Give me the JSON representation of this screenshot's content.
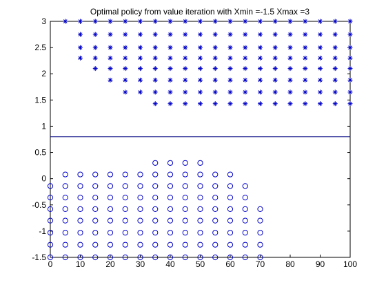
{
  "chart_data": {
    "type": "scatter",
    "title": "Optimal policy from value iteration with Xmin =-1.5 Xmax =3",
    "xlabel": "",
    "ylabel": "",
    "xlim": [
      0,
      100
    ],
    "ylim": [
      -1.5,
      3
    ],
    "grid": false,
    "xticks": [
      0,
      10,
      20,
      30,
      40,
      50,
      60,
      70,
      80,
      90,
      100
    ],
    "yticks": [
      -1.5,
      -1,
      -0.5,
      0,
      0.5,
      1,
      1.5,
      2,
      2.5,
      3
    ],
    "xtick_labels": [
      "0",
      "10",
      "20",
      "30",
      "40",
      "50",
      "60",
      "70",
      "80",
      "90",
      "100"
    ],
    "ytick_labels": [
      "-1.5",
      "-1",
      "-0.5",
      "0",
      "0.5",
      "1",
      "1.5",
      "2",
      "2.5",
      "3"
    ],
    "line_series": {
      "color": "#000080",
      "x": [
        0,
        100
      ],
      "y": [
        0.8,
        0.8
      ]
    },
    "star_series": {
      "marker": "asterisk",
      "color": "#0000c8",
      "rows": [
        {
          "y": 3.0,
          "x_from": 5,
          "x_to": 100,
          "step": 5
        },
        {
          "y": 2.75,
          "x_from": 10,
          "x_to": 100,
          "step": 5
        },
        {
          "y": 2.5,
          "x_from": 10,
          "x_to": 100,
          "step": 5
        },
        {
          "y": 2.3,
          "x_from": 10,
          "x_to": 100,
          "step": 5
        },
        {
          "y": 2.1,
          "x_from": 15,
          "x_to": 100,
          "step": 5
        },
        {
          "y": 1.88,
          "x_from": 20,
          "x_to": 100,
          "step": 5
        },
        {
          "y": 1.65,
          "x_from": 25,
          "x_to": 100,
          "step": 5
        },
        {
          "y": 1.43,
          "x_from": 35,
          "x_to": 100,
          "step": 5
        }
      ]
    },
    "circle_series": {
      "marker": "circle",
      "color": "#0000c8",
      "rows": [
        {
          "y": 0.3,
          "x_from": 35,
          "x_to": 50,
          "step": 5
        },
        {
          "y": 0.08,
          "x_from": 5,
          "x_to": 60,
          "step": 5
        },
        {
          "y": -0.14,
          "x_from": 0,
          "x_to": 65,
          "step": 5
        },
        {
          "y": -0.36,
          "x_from": 0,
          "x_to": 65,
          "step": 5
        },
        {
          "y": -0.58,
          "x_from": 0,
          "x_to": 70,
          "step": 5
        },
        {
          "y": -0.8,
          "x_from": 0,
          "x_to": 70,
          "step": 5
        },
        {
          "y": -1.03,
          "x_from": 0,
          "x_to": 70,
          "step": 5
        },
        {
          "y": -1.26,
          "x_from": 0,
          "x_to": 70,
          "step": 5
        },
        {
          "y": -1.5,
          "x_from": 0,
          "x_to": 70,
          "step": 5
        }
      ]
    }
  }
}
